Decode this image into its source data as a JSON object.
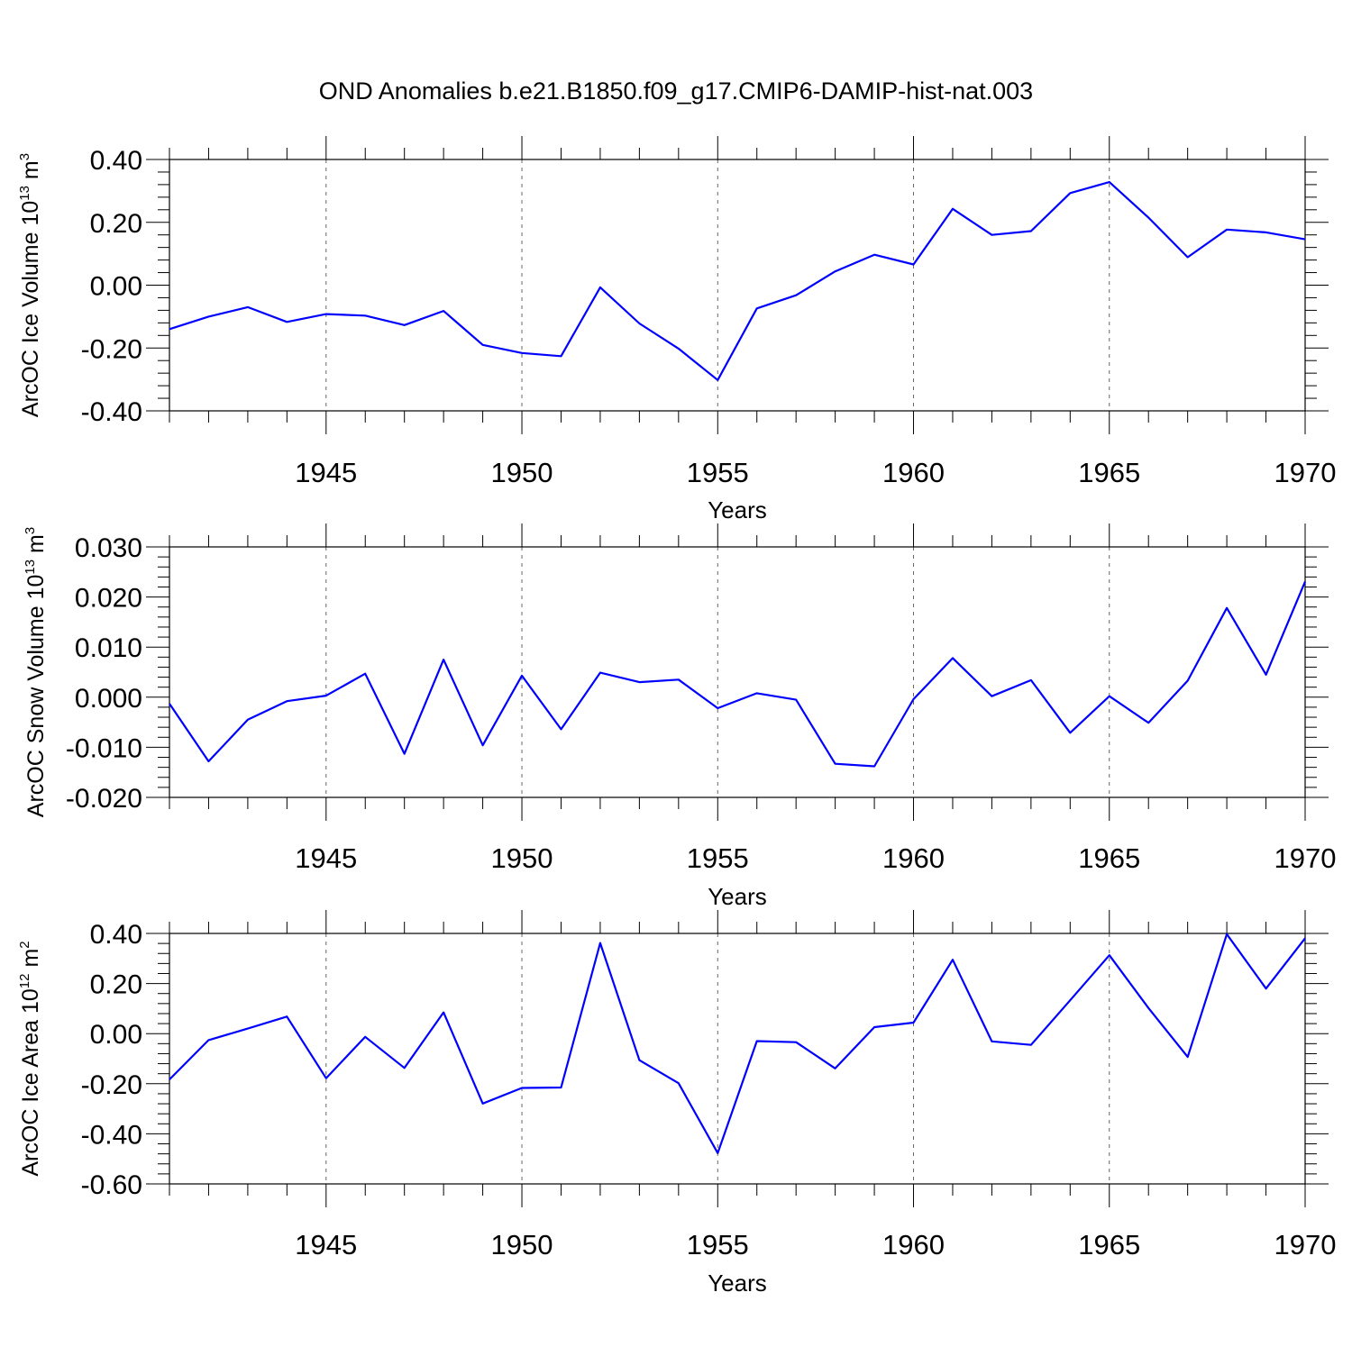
{
  "title": "OND Anomalies b.e21.B1850.f09_g17.CMIP6-DAMIP-hist-nat.003",
  "colors": {
    "series": "#0000ff",
    "axes": "#000000",
    "grid": "#666666",
    "background": "#ffffff"
  },
  "chart_data": [
    {
      "type": "line",
      "xlabel": "Years",
      "ylabel": "ArcOC Ice Volume 10",
      "ylabel_exp": "13",
      "ylabel_unit": " m",
      "ylabel_unit_exp": "3",
      "xlim": [
        1941,
        1970
      ],
      "ylim": [
        -0.4,
        0.4
      ],
      "yticks": [
        -0.4,
        -0.2,
        0.0,
        0.2,
        0.4
      ],
      "ytick_labels": [
        "-0.40",
        "-0.20",
        "0.00",
        "0.20",
        "0.40"
      ],
      "yminor_step": 0.04,
      "xticks": [
        1945,
        1950,
        1955,
        1960,
        1965,
        1970
      ],
      "xtick_labels": [
        "1945",
        "1950",
        "1955",
        "1960",
        "1965",
        "1970"
      ],
      "grid": "vertical dashed at major x ticks",
      "x": [
        1941,
        1942,
        1943,
        1944,
        1945,
        1946,
        1947,
        1948,
        1949,
        1950,
        1951,
        1952,
        1953,
        1954,
        1955,
        1956,
        1957,
        1958,
        1959,
        1960,
        1961,
        1962,
        1963,
        1964,
        1965,
        1966,
        1967,
        1968,
        1969,
        1970
      ],
      "values": [
        -0.14,
        -0.1,
        -0.07,
        -0.117,
        -0.092,
        -0.097,
        -0.127,
        -0.082,
        -0.19,
        -0.216,
        -0.226,
        -0.007,
        -0.122,
        -0.202,
        -0.302,
        -0.074,
        -0.032,
        0.044,
        0.097,
        0.066,
        0.243,
        0.16,
        0.172,
        0.293,
        0.328,
        0.215,
        0.089,
        0.177,
        0.168,
        0.146
      ]
    },
    {
      "type": "line",
      "xlabel": "Years",
      "ylabel": "ArcOC Snow Volume 10",
      "ylabel_exp": "13",
      "ylabel_unit": " m",
      "ylabel_unit_exp": "3",
      "xlim": [
        1941,
        1970
      ],
      "ylim": [
        -0.02,
        0.03
      ],
      "yticks": [
        -0.02,
        -0.01,
        0.0,
        0.01,
        0.02,
        0.03
      ],
      "ytick_labels": [
        "-0.020",
        "-0.010",
        "0.000",
        "0.010",
        "0.020",
        "0.030"
      ],
      "yminor_step": 0.002,
      "xticks": [
        1945,
        1950,
        1955,
        1960,
        1965,
        1970
      ],
      "xtick_labels": [
        "1945",
        "1950",
        "1955",
        "1960",
        "1965",
        "1970"
      ],
      "grid": "vertical dashed at major x ticks",
      "x": [
        1941,
        1942,
        1943,
        1944,
        1945,
        1946,
        1947,
        1948,
        1949,
        1950,
        1951,
        1952,
        1953,
        1954,
        1955,
        1956,
        1957,
        1958,
        1959,
        1960,
        1961,
        1962,
        1963,
        1964,
        1965,
        1966,
        1967,
        1968,
        1969,
        1970
      ],
      "values": [
        -0.0013,
        -0.0128,
        -0.0045,
        -0.0008,
        0.0003,
        0.0047,
        -0.0113,
        0.0075,
        -0.0096,
        0.0043,
        -0.0064,
        0.0049,
        0.003,
        0.0035,
        -0.0022,
        0.0008,
        -0.0005,
        -0.0133,
        -0.0138,
        -0.0004,
        0.0078,
        0.0002,
        0.0034,
        -0.0071,
        0.0002,
        -0.0051,
        0.0033,
        0.0178,
        0.0045,
        0.0231
      ]
    },
    {
      "type": "line",
      "xlabel": "Years",
      "ylabel": "ArcOC Ice Area 10",
      "ylabel_exp": "12",
      "ylabel_unit": " m",
      "ylabel_unit_exp": "2",
      "xlim": [
        1941,
        1970
      ],
      "ylim": [
        -0.6,
        0.4
      ],
      "yticks": [
        -0.6,
        -0.4,
        -0.2,
        0.0,
        0.2,
        0.4
      ],
      "ytick_labels": [
        "-0.60",
        "-0.40",
        "-0.20",
        "0.00",
        "0.20",
        "0.40"
      ],
      "yminor_step": 0.04,
      "xticks": [
        1945,
        1950,
        1955,
        1960,
        1965,
        1970
      ],
      "xtick_labels": [
        "1945",
        "1950",
        "1955",
        "1960",
        "1965",
        "1970"
      ],
      "grid": "vertical dashed at major x ticks",
      "x": [
        1941,
        1942,
        1943,
        1944,
        1945,
        1946,
        1947,
        1948,
        1949,
        1950,
        1951,
        1952,
        1953,
        1954,
        1955,
        1956,
        1957,
        1958,
        1959,
        1960,
        1961,
        1962,
        1963,
        1964,
        1965,
        1966,
        1967,
        1968,
        1969,
        1970
      ],
      "values": [
        -0.183,
        -0.026,
        0.02,
        0.068,
        -0.178,
        -0.013,
        -0.137,
        0.085,
        -0.279,
        -0.217,
        -0.215,
        0.362,
        -0.106,
        -0.198,
        -0.477,
        -0.03,
        -0.034,
        -0.139,
        0.026,
        0.044,
        0.295,
        -0.031,
        -0.045,
        0.133,
        0.313,
        0.102,
        -0.093,
        0.397,
        0.18,
        0.381
      ]
    }
  ]
}
